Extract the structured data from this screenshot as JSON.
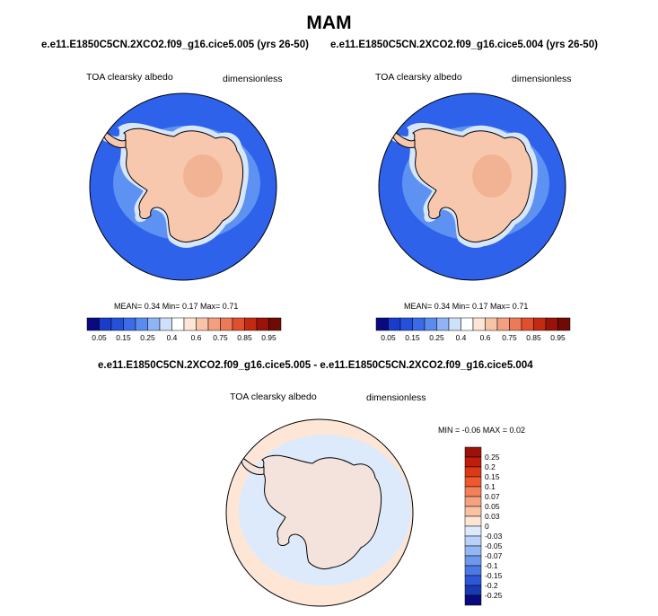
{
  "season": "MAM",
  "top_left": {
    "case": "e.e11.E1850C5CN.2XCO2.f09_g16.cice5.005 (yrs 26-50)",
    "variable": "TOA clearsky albedo",
    "units": "dimensionless",
    "stats": "MEAN=   0.34  Min=   0.17  Max=   0.71"
  },
  "top_right": {
    "case": "e.e11.E1850C5CN.2XCO2.f09_g16.cice5.004 (yrs 26-50)",
    "variable": "TOA clearsky albedo",
    "units": "dimensionless",
    "stats": "MEAN=   0.34  Min=   0.17  Max=   0.71"
  },
  "bottom": {
    "case": "e.e11.E1850C5CN.2XCO2.f09_g16.cice5.005 - e.e11.E1850C5CN.2XCO2.f09_g16.cice5.004",
    "variable": "TOA clearsky albedo",
    "units": "dimensionless",
    "range": "MIN =  -0.06  MAX =   0.02"
  },
  "colorbar_abs": {
    "colors": [
      "#0a0a80",
      "#1a3ccc",
      "#2450dc",
      "#3a6cea",
      "#5a8cf0",
      "#8fb4f6",
      "#cfe0fa",
      "#ffffff",
      "#fde6d8",
      "#f8c4a8",
      "#f2a080",
      "#ec7a58",
      "#e0502e",
      "#c42a12",
      "#9a1208",
      "#700a04"
    ],
    "labels": [
      "0.05",
      "0.15",
      "0.25",
      "0.4",
      "0.6",
      "0.75",
      "0.85",
      "0.95"
    ]
  },
  "colorbar_diff": {
    "colors": [
      "#9a1208",
      "#c01e0a",
      "#dc3a14",
      "#ee5a2e",
      "#f4805a",
      "#f6a280",
      "#f8c2a4",
      "#fde6d6",
      "#dceafc",
      "#b9d0f8",
      "#94b6f2",
      "#6e98ec",
      "#4a78e4",
      "#2c58d8",
      "#1a3ab4",
      "#0a0a80"
    ],
    "labels": [
      "0.25",
      "0.2",
      "0.15",
      "0.1",
      "0.07",
      "0.05",
      "0.03",
      "0",
      "-0.03",
      "-0.05",
      "-0.07",
      "-0.1",
      "-0.15",
      "-0.2",
      "-0.25"
    ]
  },
  "map_colors": {
    "ocean": "#2e62ea",
    "ocean_band": "#5e92f2",
    "sea_ice_edge": "#d6e6fb",
    "land": "#f8c8ae",
    "land_high": "#f2b294",
    "diff_ocean": "#fde6d6",
    "diff_ice": "#dceafc"
  }
}
